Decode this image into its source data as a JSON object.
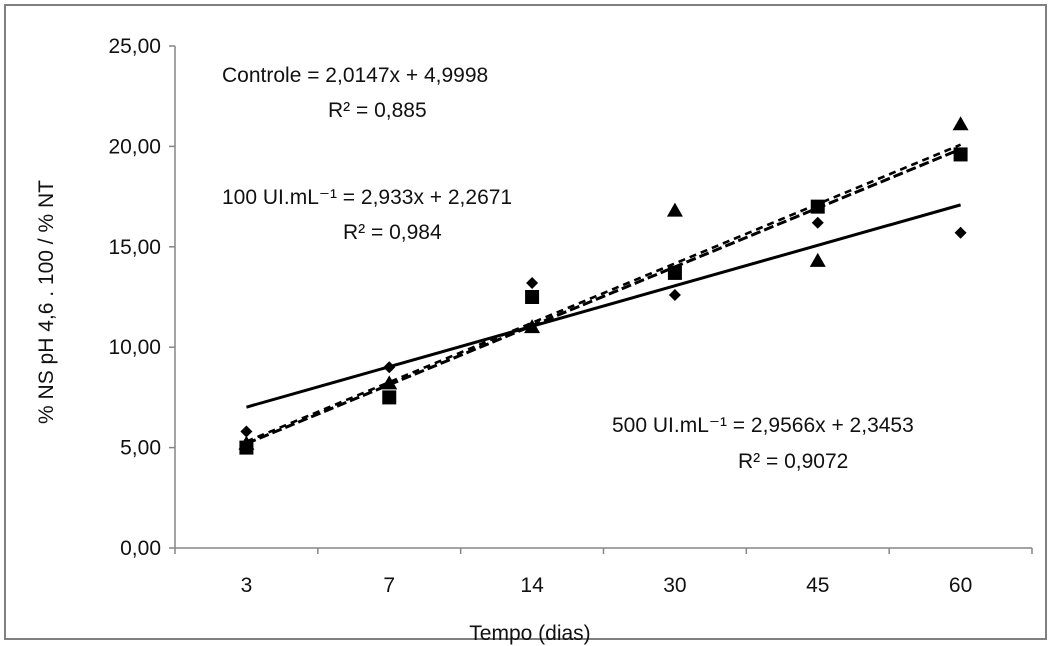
{
  "chart_data": {
    "type": "scatter",
    "title": "",
    "xlabel": "Tempo (dias)",
    "ylabel": "% NS pH 4,6 . 100 / % NT",
    "categories": [
      "3",
      "7",
      "14",
      "30",
      "45",
      "60"
    ],
    "ylim": [
      0,
      25
    ],
    "yticks": [
      "0,00",
      "5,00",
      "10,00",
      "15,00",
      "20,00",
      "25,00"
    ],
    "grid": false,
    "legend": "none",
    "series": [
      {
        "name": "Controle",
        "marker": "diamond",
        "values": [
          5.8,
          9.0,
          13.2,
          12.6,
          16.2,
          15.7
        ],
        "trend": {
          "slope": 2.0147,
          "intercept": 4.9998,
          "style": "solid"
        },
        "equation": "Controle = 2,0147x + 4,9998",
        "r2": "R² = 0,885"
      },
      {
        "name": "100 UI.mL⁻¹",
        "marker": "square",
        "values": [
          5.0,
          7.5,
          12.5,
          13.7,
          17.0,
          19.6
        ],
        "trend": {
          "slope": 2.933,
          "intercept": 2.2671,
          "style": "dashed"
        },
        "equation": "100 UI.mL⁻¹ = 2,933x + 2,2671",
        "r2": "R² = 0,984"
      },
      {
        "name": "500 UI.mL⁻¹",
        "marker": "triangle",
        "values": [
          5.2,
          8.2,
          11.0,
          16.8,
          14.3,
          21.1
        ],
        "trend": {
          "slope": 2.9566,
          "intercept": 2.3453,
          "style": "dashed"
        },
        "equation": "500 UI.mL⁻¹ = 2,9566x + 2,3453",
        "r2": "R² = 0,9072"
      }
    ],
    "colors": {
      "marker": "#000000",
      "line": "#000000"
    }
  }
}
